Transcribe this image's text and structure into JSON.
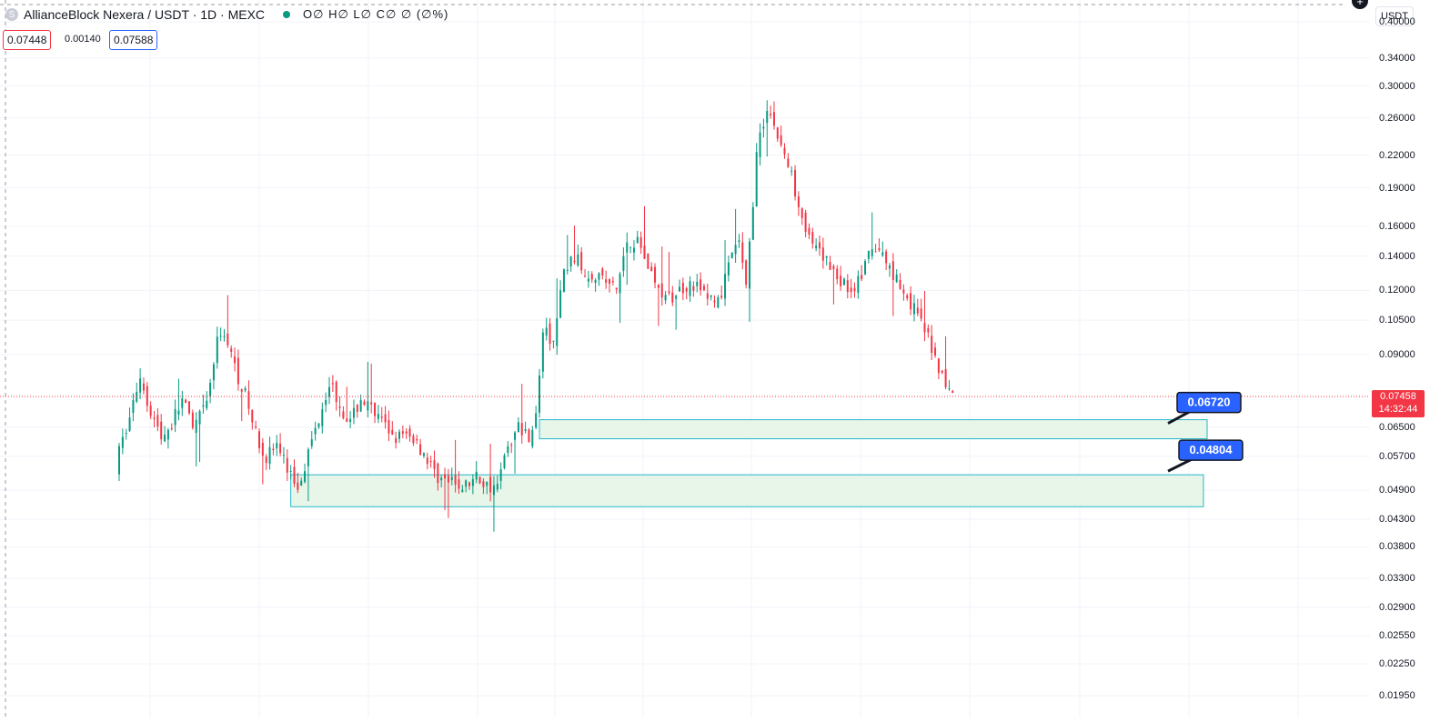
{
  "header": {
    "logo_letter": "S",
    "symbol": "AllianceBlock Nexera / USDT · 1D · MEXC",
    "ohlc": "O∅ H∅ L∅ C∅ ∅ (∅%)",
    "bid": "0.07448",
    "spread": "0.00140",
    "ask": "0.07588"
  },
  "axis": {
    "unit_button": "USDT",
    "current_price": "0.07458",
    "countdown": "14:32:44"
  },
  "colors": {
    "up": "#089981",
    "down": "#f23645",
    "zone_fill": "#e8f5e9",
    "zone_border": "#22b8c9",
    "label_blue": "#2962ff",
    "grid": "#f0f3fa"
  },
  "chart_data": {
    "type": "candlestick",
    "title": "AllianceBlock Nexera / USDT · 1D · MEXC",
    "y_scale": "log",
    "ylim": [
      0.0185,
      0.42
    ],
    "y_ticks": [
      "0.40000",
      "0.34000",
      "0.30000",
      "0.26000",
      "0.22000",
      "0.19000",
      "0.16000",
      "0.14000",
      "0.12000",
      "0.10500",
      "0.09000",
      "0.07458",
      "0.06500",
      "0.05700",
      "0.04900",
      "0.04300",
      "0.03800",
      "0.03300",
      "0.02900",
      "0.02550",
      "0.02250",
      "0.01950"
    ],
    "current_price": 0.07458,
    "price_path": [
      [
        0,
        0.058
      ],
      [
        3,
        0.068
      ],
      [
        6,
        0.082
      ],
      [
        9,
        0.07
      ],
      [
        12,
        0.062
      ],
      [
        15,
        0.066
      ],
      [
        18,
        0.074
      ],
      [
        21,
        0.064
      ],
      [
        25,
        0.072
      ],
      [
        28,
        0.095
      ],
      [
        30,
        0.1
      ],
      [
        33,
        0.085
      ],
      [
        36,
        0.075
      ],
      [
        39,
        0.063
      ],
      [
        42,
        0.057
      ],
      [
        45,
        0.06
      ],
      [
        48,
        0.054
      ],
      [
        51,
        0.05
      ],
      [
        54,
        0.058
      ],
      [
        57,
        0.068
      ],
      [
        60,
        0.08
      ],
      [
        63,
        0.072
      ],
      [
        66,
        0.066
      ],
      [
        69,
        0.074
      ],
      [
        72,
        0.07
      ],
      [
        75,
        0.066
      ],
      [
        78,
        0.063
      ],
      [
        81,
        0.062
      ],
      [
        84,
        0.062
      ],
      [
        87,
        0.058
      ],
      [
        90,
        0.053
      ],
      [
        93,
        0.051
      ],
      [
        96,
        0.05
      ],
      [
        99,
        0.05
      ],
      [
        102,
        0.052
      ],
      [
        105,
        0.05
      ],
      [
        108,
        0.05
      ],
      [
        111,
        0.06
      ],
      [
        114,
        0.065
      ],
      [
        117,
        0.063
      ],
      [
        119,
        0.068
      ],
      [
        121,
        0.1
      ],
      [
        124,
        0.095
      ],
      [
        127,
        0.13
      ],
      [
        130,
        0.14
      ],
      [
        133,
        0.13
      ],
      [
        136,
        0.13
      ],
      [
        139,
        0.125
      ],
      [
        142,
        0.12
      ],
      [
        145,
        0.15
      ],
      [
        148,
        0.15
      ],
      [
        151,
        0.135
      ],
      [
        154,
        0.12
      ],
      [
        157,
        0.115
      ],
      [
        160,
        0.12
      ],
      [
        163,
        0.125
      ],
      [
        166,
        0.12
      ],
      [
        169,
        0.115
      ],
      [
        172,
        0.118
      ],
      [
        175,
        0.14
      ],
      [
        177,
        0.15
      ],
      [
        179,
        0.12
      ],
      [
        182,
        0.22
      ],
      [
        185,
        0.275
      ],
      [
        188,
        0.24
      ],
      [
        191,
        0.21
      ],
      [
        194,
        0.18
      ],
      [
        197,
        0.15
      ],
      [
        200,
        0.14
      ],
      [
        203,
        0.135
      ],
      [
        206,
        0.125
      ],
      [
        209,
        0.12
      ],
      [
        212,
        0.128
      ],
      [
        215,
        0.145
      ],
      [
        218,
        0.14
      ],
      [
        221,
        0.13
      ],
      [
        224,
        0.12
      ],
      [
        227,
        0.11
      ],
      [
        230,
        0.1
      ],
      [
        233,
        0.09
      ],
      [
        236,
        0.078
      ],
      [
        238,
        0.075
      ]
    ],
    "zones": [
      {
        "label": "0.06720",
        "top": 0.0672,
        "bottom": 0.0617,
        "start_bar": 120
      },
      {
        "label": "0.04804",
        "top": 0.0525,
        "bottom": 0.0455,
        "start_bar": 49
      }
    ]
  }
}
